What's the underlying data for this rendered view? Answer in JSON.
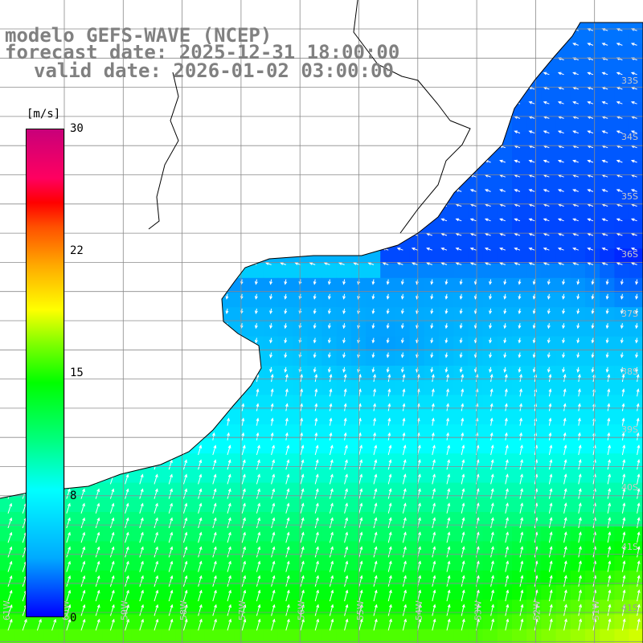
{
  "titles": {
    "line1": "modelo GEFS-WAVE (NCEP)",
    "line2": "forecast date: 2025-12-31 18:00:00",
    "line3": "valid date: 2026-01-02 03:00:00"
  },
  "colorbar": {
    "unit": "[m/s]",
    "ticks": [
      "30",
      "22",
      "15",
      "8",
      "0"
    ],
    "min": 0,
    "max": 30,
    "colors": [
      "#0000ff",
      "#00aaff",
      "#00ffff",
      "#00ff80",
      "#00ff00",
      "#80ff00",
      "#ffff00",
      "#ffaa00",
      "#ff5000",
      "#ff0000",
      "#ff0060",
      "#c8007a"
    ]
  },
  "latitude_labels": [
    "33S",
    "34S",
    "35S",
    "36S",
    "37S",
    "38S",
    "39S",
    "40S",
    "41S"
  ],
  "longitude_labels": [
    "61W",
    "60W",
    "59W",
    "58W",
    "57W",
    "56W",
    "55W",
    "54W",
    "53W",
    "52W",
    "51W"
  ],
  "map": {
    "grid_lines": true,
    "land_color": "#ffffff",
    "coast_color": "#000000",
    "arrow_color": "#ffffff"
  }
}
